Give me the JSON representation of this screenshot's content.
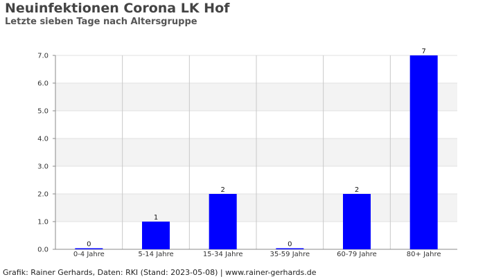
{
  "title": "Neuinfektionen Corona LK Hof",
  "subtitle": "Letzte sieben Tage nach Altersgruppe",
  "footer": "Grafik: Rainer Gerhards, Daten: RKI (Stand: 2023-05-08) | www.rainer-gerhards.de",
  "chart_data": {
    "type": "bar",
    "title": "Neuinfektionen Corona LK Hof",
    "subtitle": "Letzte sieben Tage nach Altersgruppe",
    "categories": [
      "0-4 Jahre",
      "5-14 Jahre",
      "15-34 Jahre",
      "35-59 Jahre",
      "60-79 Jahre",
      "80+ Jahre"
    ],
    "values": [
      0,
      1,
      2,
      0,
      2,
      7
    ],
    "data_labels": [
      "0",
      "1",
      "2",
      "0",
      "2",
      "7"
    ],
    "yticks": [
      0,
      1,
      2,
      3,
      4,
      5,
      6,
      7
    ],
    "ytick_labels": [
      "0.0",
      "1.0",
      "2.0",
      "3.0",
      "4.0",
      "5.0",
      "6.0",
      "7.0"
    ],
    "ylim": [
      0,
      7
    ],
    "xlabel": "",
    "ylabel": "",
    "grid": true,
    "bar_color": "#0000ff",
    "band_color": "#f3f3f3"
  }
}
